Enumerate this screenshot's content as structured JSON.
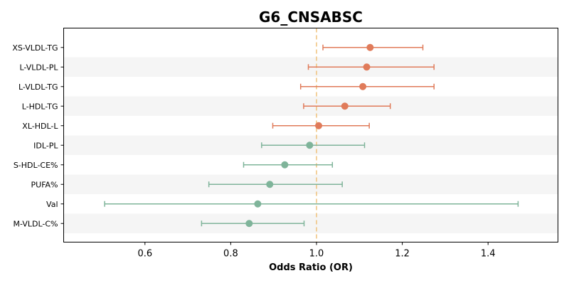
{
  "chart_data": {
    "type": "forest",
    "title": "G6_CNSABSC",
    "xlabel": "Odds Ratio (OR)",
    "xlim": [
      0.45,
      1.57
    ],
    "xticks": [
      0.6,
      0.8,
      1.0,
      1.2,
      1.4
    ],
    "xtick_labels": [
      "0.6",
      "0.8",
      "1.0",
      "1.2",
      "1.4"
    ],
    "reference_line": 1.0,
    "reference_color": "#f0c27b",
    "band_color": "#f5f5f5",
    "colors": {
      "positive": "#e07b5a",
      "negative": "#7fb49a"
    },
    "rows": [
      {
        "label": "XS-VLDL-TG",
        "or": 1.125,
        "lo": 1.015,
        "hi": 1.248,
        "group": "positive"
      },
      {
        "label": "L-VLDL-PL",
        "or": 1.117,
        "lo": 0.981,
        "hi": 1.274,
        "group": "positive"
      },
      {
        "label": "L-VLDL-TG",
        "or": 1.108,
        "lo": 0.963,
        "hi": 1.274,
        "group": "positive"
      },
      {
        "label": "L-HDL-TG",
        "or": 1.066,
        "lo": 0.97,
        "hi": 1.172,
        "group": "positive"
      },
      {
        "label": "XL-HDL-L",
        "or": 1.005,
        "lo": 0.898,
        "hi": 1.123,
        "group": "positive"
      },
      {
        "label": "IDL-PL",
        "or": 0.984,
        "lo": 0.872,
        "hi": 1.112,
        "group": "negative"
      },
      {
        "label": "S-HDL-CE%",
        "or": 0.926,
        "lo": 0.83,
        "hi": 1.037,
        "group": "negative"
      },
      {
        "label": "PUFA%",
        "or": 0.891,
        "lo": 0.749,
        "hi": 1.06,
        "group": "negative"
      },
      {
        "label": "Val",
        "or": 0.863,
        "lo": 0.506,
        "hi": 1.47,
        "group": "negative"
      },
      {
        "label": "M-VLDL-C%",
        "or": 0.843,
        "lo": 0.732,
        "hi": 0.971,
        "group": "negative"
      }
    ]
  }
}
